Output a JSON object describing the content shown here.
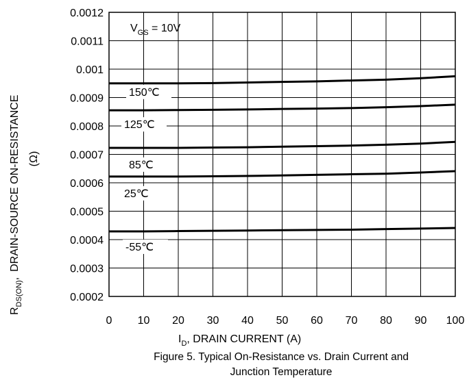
{
  "chart_data": {
    "type": "line",
    "ylabel_main": "DRAIN-SOURCE ON-RESISTANCE",
    "ylabel_unit": "(Ω)",
    "ylabel_symbol": "R",
    "ylabel_symbol_sub": "DS(ON)",
    "ylabel_symbol_suffix": ",",
    "xlabel_symbol": "I",
    "xlabel_symbol_sub": "D",
    "xlabel_rest": ", DRAIN CURRENT (A)",
    "annotation": {
      "main": "V",
      "sub": "GS",
      "rest": " = 10V"
    },
    "xlim": [
      0,
      100
    ],
    "ylim": [
      0.0002,
      0.0012
    ],
    "x_ticks": [
      "0",
      "10",
      "20",
      "30",
      "40",
      "50",
      "60",
      "70",
      "80",
      "90",
      "100"
    ],
    "y_ticks": [
      "0.0012",
      "0.0011",
      "0.001",
      "0.0009",
      "0.0008",
      "0.0007",
      "0.0006",
      "0.0005",
      "0.0004",
      "0.0003",
      "0.0002"
    ],
    "grid": true,
    "series": [
      {
        "name": "150℃",
        "x": [
          0,
          10,
          20,
          30,
          40,
          50,
          60,
          70,
          80,
          90,
          100
        ],
        "values": [
          0.00095,
          0.00095,
          0.00095,
          0.000951,
          0.000953,
          0.000955,
          0.000957,
          0.00096,
          0.000963,
          0.000968,
          0.000975
        ]
      },
      {
        "name": "125℃",
        "x": [
          0,
          10,
          20,
          30,
          40,
          50,
          60,
          70,
          80,
          90,
          100
        ],
        "values": [
          0.000855,
          0.000855,
          0.000856,
          0.000857,
          0.000858,
          0.00086,
          0.000861,
          0.000863,
          0.000866,
          0.00087,
          0.000875
        ]
      },
      {
        "name": "85℃",
        "x": [
          0,
          10,
          20,
          30,
          40,
          50,
          60,
          70,
          80,
          90,
          100
        ],
        "values": [
          0.000723,
          0.000723,
          0.000723,
          0.000724,
          0.000725,
          0.000727,
          0.000729,
          0.000731,
          0.000734,
          0.000738,
          0.000744
        ]
      },
      {
        "name": "25℃",
        "x": [
          0,
          10,
          20,
          30,
          40,
          50,
          60,
          70,
          80,
          90,
          100
        ],
        "values": [
          0.000622,
          0.000622,
          0.000622,
          0.000623,
          0.000624,
          0.000626,
          0.000628,
          0.00063,
          0.000632,
          0.000636,
          0.000641
        ]
      },
      {
        "name": "-55℃",
        "x": [
          0,
          10,
          20,
          30,
          40,
          50,
          60,
          70,
          80,
          90,
          100
        ],
        "values": [
          0.000429,
          0.000429,
          0.00043,
          0.000431,
          0.000432,
          0.000433,
          0.000434,
          0.000435,
          0.000437,
          0.000439,
          0.000441
        ]
      }
    ]
  },
  "caption": {
    "line1": "Figure 5. Typical On-Resistance vs. Drain Current and",
    "line2": "Junction Temperature"
  }
}
